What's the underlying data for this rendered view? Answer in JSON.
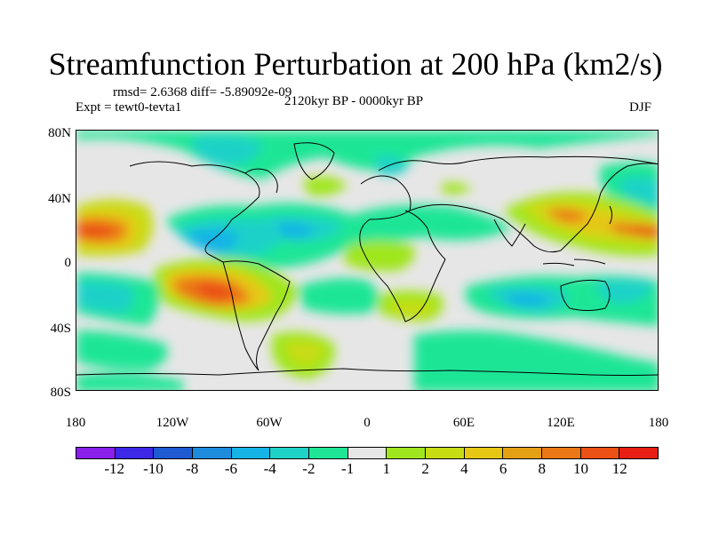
{
  "title": "Streamfunction Perturbation at 200 hPa (km2/s)",
  "stats": "rmsd= 2.6368 diff= -5.89092e-09",
  "experiment": "Expt = tewt0-tevta1",
  "period": "2120kyr BP - 0000kyr BP",
  "season": "DJF",
  "lat_ticks": [
    "80N",
    "40N",
    "0",
    "40S",
    "80S"
  ],
  "lon_ticks": [
    "180",
    "120W",
    "60W",
    "0",
    "60E",
    "120E",
    "180"
  ],
  "colorbar": {
    "colors": [
      "#8a1eeb",
      "#3c28e6",
      "#1e5ad2",
      "#1e8cdc",
      "#14b4e6",
      "#1ed2c8",
      "#1ee696",
      "#e6e6e6",
      "#a0e61e",
      "#c8dc14",
      "#e6c814",
      "#e6a014",
      "#eb7814",
      "#eb5014",
      "#e61e14"
    ],
    "labels": [
      "-12",
      "-10",
      "-8",
      "-6",
      "-4",
      "-2",
      "-1",
      "1",
      "2",
      "4",
      "6",
      "8",
      "10",
      "12"
    ]
  },
  "palette": {
    "background": "#e6e6e6",
    "coast": "#000000"
  }
}
